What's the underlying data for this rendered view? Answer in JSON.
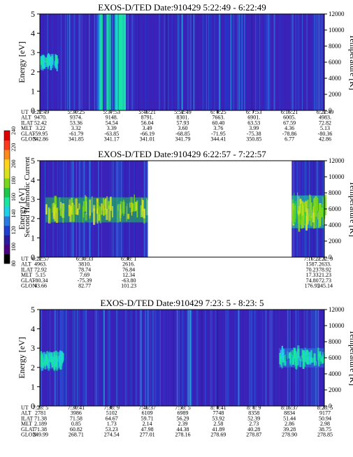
{
  "colorbar": {
    "label": "Second Harmonic Current",
    "ticks": [
      "240",
      "220",
      "200",
      "180",
      "160",
      "140",
      "120",
      "100",
      "80"
    ],
    "range": [
      80,
      240
    ],
    "colors": [
      "#000000",
      "#4b0082",
      "#2a1a9e",
      "#1f3fd1",
      "#2a7be0",
      "#1fd0e8",
      "#19e6a0",
      "#1cc84a",
      "#7ad81c",
      "#d8e21c",
      "#ffd21c",
      "#ff8a1c",
      "#ff3a1c",
      "#e00000"
    ]
  },
  "chart_data": [
    {
      "type": "heatmap",
      "title": "EXOS-D/TED   Date:910429  5:22:49 - 6:22:49",
      "ylabel": "Energy [eV]",
      "y2label": "Temperature [K]",
      "ylim": [
        0,
        5
      ],
      "y2lim": [
        0,
        12000
      ],
      "yticks": [
        "0",
        "1",
        "2",
        "3",
        "4",
        "5"
      ],
      "y2ticks": [
        "0",
        "2000",
        "4000",
        "6000",
        "8000",
        "10000",
        "12000"
      ],
      "row_labels": [
        "UT",
        "ALT",
        "ILAT",
        "MLT",
        "GLAT",
        "GLON"
      ],
      "columns": [
        [
          "5:22:49",
          "9470.",
          "52.42",
          "3.22",
          "-59.95",
          "342.86"
        ],
        [
          "5:30:25",
          "9374.",
          "53.36",
          "3.32",
          "-61.79",
          "341.85"
        ],
        [
          "5:37:53",
          "9148.",
          "54.54",
          "3.39",
          "-63.85",
          "341.17"
        ],
        [
          "5:45:21",
          "8791.",
          "56.04",
          "3.49",
          "-66.19",
          "341.01"
        ],
        [
          "5:52:49",
          "8301.",
          "57.93",
          "3.60",
          "-68.85",
          "341.79"
        ],
        [
          "6: 0:25",
          "7663.",
          "60.40",
          "3.76",
          "-71.95",
          "344.41"
        ],
        [
          "6: 7:53",
          "6901.",
          "63.53",
          "3.99",
          "-75.38",
          "350.85"
        ],
        [
          "6:15:21",
          "6005.",
          "67.59",
          "4.36",
          "-78.86",
          "6.77"
        ],
        [
          "6:22:49",
          "4983.",
          "72.82",
          "5.13",
          "-80.36",
          "42.86"
        ]
      ],
      "data_gaps": [],
      "features": [
        {
          "kind": "band",
          "t": [
            0.0,
            0.06
          ],
          "energy": [
            2.1,
            2.9
          ],
          "level": 145
        },
        {
          "kind": "burst",
          "t": [
            0.2,
            0.3
          ],
          "energy": [
            0,
            5
          ],
          "level": 140
        }
      ]
    },
    {
      "type": "heatmap",
      "title": "EXOS-D/TED   Date:910429  6:22:57 - 7:22:57",
      "ylabel": "Energy [eV]",
      "y2label": "Temperature [K]",
      "ylim": [
        0,
        5
      ],
      "y2lim": [
        0,
        12000
      ],
      "yticks": [
        "0",
        "1",
        "2",
        "3",
        "4",
        "5"
      ],
      "y2ticks": [
        "0",
        "2000",
        "4000",
        "6000",
        "8000",
        "10000",
        "12000"
      ],
      "row_labels": [
        "UT",
        "ALT",
        "ILAT",
        "MLT",
        "GLAT",
        "GLON"
      ],
      "columns": [
        [
          "6:22:57",
          "4963.",
          "72.92",
          "5.15",
          "-80.34",
          "43.66"
        ],
        [
          "6:30:33",
          "3810.",
          "78.74",
          "7.69",
          "-75.39",
          "82.77"
        ],
        [
          "6:38: 1",
          "2616.",
          "76.84",
          "12.34",
          "-63.80",
          "101.23"
        ],
        [
          "7:15:21",
          "1587.",
          "70.23",
          "17.33",
          "74.80",
          "176.95"
        ],
        [
          "7:22: 9",
          "2633.",
          "78.92",
          "21.23",
          "72.73",
          "245.14"
        ]
      ],
      "column_positions": [
        0.0,
        0.155,
        0.31,
        0.955,
        1.0
      ],
      "data_gaps": [
        [
          0.38,
          0.885
        ]
      ],
      "features": [
        {
          "kind": "band",
          "t": [
            0.02,
            0.38
          ],
          "energy": [
            1.8,
            3.1
          ],
          "level": 185
        },
        {
          "kind": "band",
          "t": [
            0.885,
            1.0
          ],
          "energy": [
            1.5,
            3.2
          ],
          "level": 180
        }
      ]
    },
    {
      "type": "heatmap",
      "title": "EXOS-D/TED   Date:910429  7:23: 5 - 8:23: 5",
      "ylabel": "Energy [eV]",
      "y2label": "Temperature [K]",
      "ylim": [
        0,
        5
      ],
      "y2lim": [
        0,
        12000
      ],
      "yticks": [
        "0",
        "1",
        "2",
        "3",
        "4",
        "5"
      ],
      "y2ticks": [
        "0",
        "2000",
        "4000",
        "6000",
        "8000",
        "10000",
        "12000"
      ],
      "row_labels": [
        "UT",
        "ALT",
        "ILAT",
        "MLT",
        "GLAT",
        "GLON"
      ],
      "columns": [
        [
          "7:23: 5",
          "2781",
          "71.38",
          "2.189",
          "71.38",
          "249.99"
        ],
        [
          "7:30:41",
          "3986",
          "71.58",
          "0.85",
          "60.82",
          "268.71"
        ],
        [
          "7:38: 9",
          "5102",
          "64.67",
          "1.73",
          "53.23",
          "274.54"
        ],
        [
          "7:45:37",
          "6109",
          "59.71",
          "2.14",
          "47.98",
          "277.01"
        ],
        [
          "7:53: 5",
          "6989",
          "56.29",
          "2.39",
          "44.38",
          "278.16"
        ],
        [
          "8: 0:41",
          "7748",
          "53.92",
          "2.58",
          "41.89",
          "278.69"
        ],
        [
          "8: 8: 9",
          "8358",
          "52.39",
          "2.73",
          "40.28",
          "278.87"
        ],
        [
          "8:15:37",
          "8834",
          "51.44",
          "2.86",
          "39.28",
          "278.90"
        ],
        [
          "8:23: 5",
          "9177",
          "50.94",
          "2.98",
          "38.75",
          "278.85"
        ]
      ],
      "data_gaps": [],
      "features": [
        {
          "kind": "band",
          "t": [
            0.0,
            0.08
          ],
          "energy": [
            1.9,
            2.8
          ],
          "level": 150
        },
        {
          "kind": "band",
          "t": [
            0.84,
            1.0
          ],
          "energy": [
            2.0,
            3.0
          ],
          "level": 150
        }
      ]
    }
  ]
}
